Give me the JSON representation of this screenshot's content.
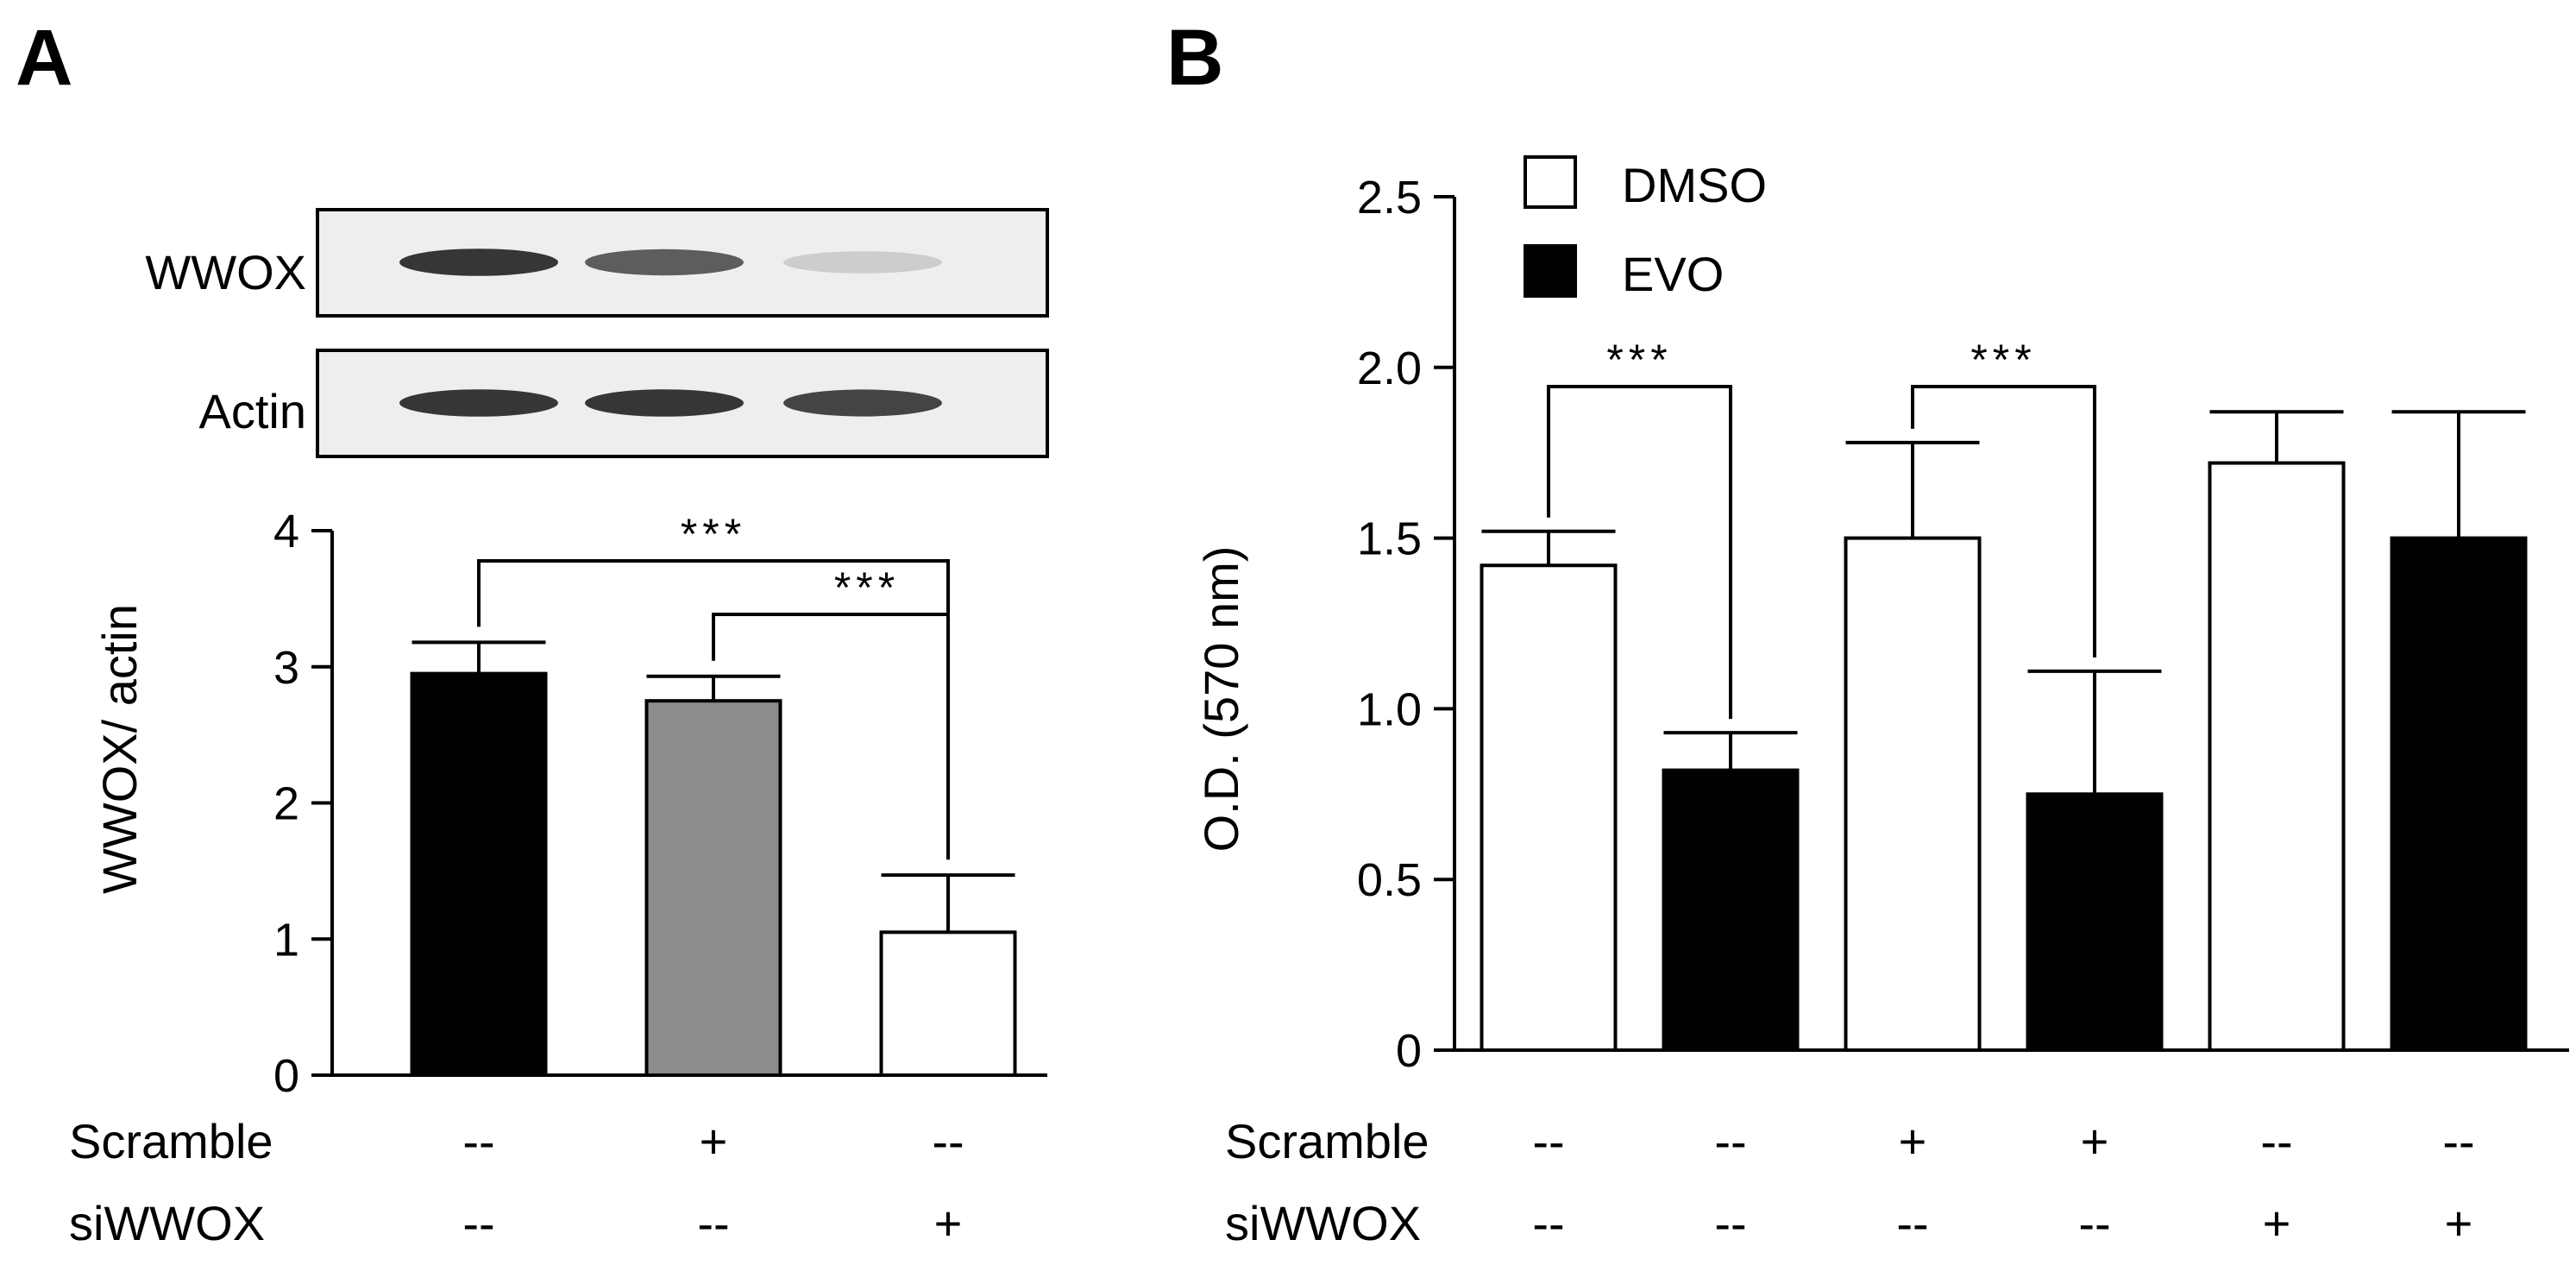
{
  "chart_data": [
    {
      "panel": "A",
      "type": "bar",
      "blot": {
        "rows": [
          {
            "label": "WWOX",
            "band_intensity": [
              0.95,
              0.8,
              0.2
            ]
          },
          {
            "label": "Actin",
            "band_intensity": [
              0.95,
              0.95,
              0.9
            ]
          }
        ]
      },
      "ylabel": "WWOX/ actin",
      "ylim": [
        0,
        4
      ],
      "yticks": [
        "0",
        "1",
        "2",
        "3",
        "4"
      ],
      "values": [
        2.95,
        2.75,
        1.05
      ],
      "errors": [
        0.23,
        0.18,
        0.42
      ],
      "bar_colors": [
        "#000000",
        "#8c8c8c",
        "#ffffff"
      ],
      "conditions": [
        {
          "label": "Scramble",
          "values": [
            "--",
            "+",
            "--"
          ]
        },
        {
          "label": "siWWOX",
          "values": [
            "--",
            "--",
            "+"
          ]
        }
      ],
      "significance": [
        {
          "from": 0,
          "to": 2,
          "label": "***"
        },
        {
          "from": 1,
          "to": 2,
          "label": "***"
        }
      ]
    },
    {
      "panel": "B",
      "type": "bar",
      "ylabel": "O.D. (570 nm)",
      "ylim": [
        0,
        2.5
      ],
      "yticks": [
        "0",
        "0.5",
        "1.0",
        "1.5",
        "2.0",
        "2.5"
      ],
      "legend": [
        {
          "label": "DMSO",
          "color": "#ffffff"
        },
        {
          "label": "EVO",
          "color": "#000000"
        }
      ],
      "values": [
        1.42,
        0.82,
        1.5,
        0.75,
        1.72,
        1.5
      ],
      "errors": [
        0.1,
        0.11,
        0.28,
        0.36,
        0.15,
        0.37
      ],
      "bar_colors": [
        "#ffffff",
        "#000000",
        "#ffffff",
        "#000000",
        "#ffffff",
        "#000000"
      ],
      "conditions": [
        {
          "label": "Scramble",
          "values": [
            "--",
            "--",
            "+",
            "+",
            "--",
            "--"
          ]
        },
        {
          "label": "siWWOX",
          "values": [
            "--",
            "--",
            "--",
            "--",
            "+",
            "+"
          ]
        }
      ],
      "significance": [
        {
          "from": 0,
          "to": 1,
          "label": "***"
        },
        {
          "from": 2,
          "to": 3,
          "label": "***"
        }
      ]
    }
  ]
}
